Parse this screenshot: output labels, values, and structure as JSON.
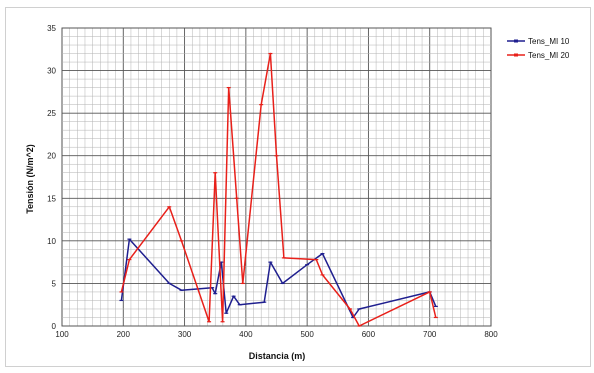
{
  "chart_data": {
    "type": "line",
    "title": "",
    "xlabel": "Distancia (m)",
    "ylabel": "Tensión (N/m^2)",
    "xlim": [
      100,
      800
    ],
    "ylim": [
      0,
      35
    ],
    "x_ticks": [
      "100",
      "200",
      "300",
      "400",
      "500",
      "600",
      "700",
      "800"
    ],
    "y_ticks": [
      "0",
      "5",
      "10",
      "15",
      "20",
      "25",
      "30",
      "35"
    ],
    "grid": true,
    "legend_position": "right",
    "series": [
      {
        "name": "Tens_MI 10",
        "color": "#1f1f8f",
        "points": [
          [
            197,
            3
          ],
          [
            210,
            10.2
          ],
          [
            275,
            5
          ],
          [
            295,
            4.2
          ],
          [
            345,
            4.5
          ],
          [
            350,
            3.8
          ],
          [
            360,
            7.5
          ],
          [
            368,
            1.5
          ],
          [
            380,
            3.5
          ],
          [
            390,
            2.5
          ],
          [
            430,
            2.8
          ],
          [
            440,
            7.5
          ],
          [
            460,
            5
          ],
          [
            500,
            7.2
          ],
          [
            525,
            8.5
          ],
          [
            575,
            1
          ],
          [
            585,
            2
          ],
          [
            700,
            4
          ],
          [
            710,
            2.3
          ]
        ]
      },
      {
        "name": "Tens_MI 20",
        "color": "#e8201a",
        "points": [
          [
            197,
            4
          ],
          [
            210,
            7.8
          ],
          [
            275,
            14
          ],
          [
            295,
            10
          ],
          [
            340,
            0.5
          ],
          [
            350,
            18
          ],
          [
            362,
            0.5
          ],
          [
            372,
            28
          ],
          [
            385,
            15
          ],
          [
            395,
            5
          ],
          [
            425,
            26
          ],
          [
            440,
            32
          ],
          [
            450,
            20
          ],
          [
            462,
            8
          ],
          [
            515,
            7.8
          ],
          [
            525,
            6
          ],
          [
            570,
            2
          ],
          [
            585,
            0
          ],
          [
            700,
            4
          ],
          [
            710,
            1
          ]
        ]
      }
    ]
  }
}
